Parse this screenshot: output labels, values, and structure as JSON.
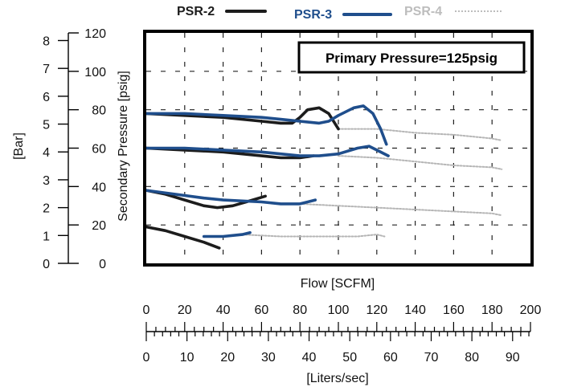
{
  "chart_data": {
    "type": "line",
    "title": "",
    "annotation": "Primary Pressure=125psig",
    "legend": {
      "placement": "top",
      "entries": [
        {
          "name": "PSR-2",
          "color": "#1c1c1c",
          "style": "solid"
        },
        {
          "name": "PSR-3",
          "color": "#1f4e8c",
          "style": "solid"
        },
        {
          "name": "PSR-4",
          "color": "#b5b5b5",
          "style": "dotted"
        }
      ]
    },
    "xlabel": "Flow [SCFM]",
    "xlim": [
      0,
      200
    ],
    "x_ticks": [
      "0",
      "20",
      "40",
      "60",
      "80",
      "100",
      "120",
      "140",
      "160",
      "180",
      "200"
    ],
    "x2label": "[Liters/sec]",
    "x2_ticks": [
      "0",
      "10",
      "20",
      "30",
      "40",
      "50",
      "60",
      "70",
      "80",
      "90"
    ],
    "ylabel": "Secondary Pressure [psig]",
    "ylim": [
      0,
      120
    ],
    "y_ticks": [
      "0",
      "20",
      "40",
      "60",
      "80",
      "100",
      "120"
    ],
    "y2label": "[Bar]",
    "y2_ticks": [
      "0",
      "1",
      "2",
      "3",
      "4",
      "5",
      "6",
      "7",
      "8"
    ],
    "grid": true,
    "series": [
      {
        "name": "PSR-2",
        "groups": [
          [
            [
              0,
              78
            ],
            [
              20,
              77
            ],
            [
              40,
              76
            ],
            [
              60,
              74
            ],
            [
              70,
              73
            ],
            [
              76,
              73
            ],
            [
              80,
              76
            ],
            [
              84,
              80
            ],
            [
              90,
              81
            ],
            [
              95,
              78
            ],
            [
              100,
              70
            ]
          ],
          [
            [
              0,
              60
            ],
            [
              20,
              59
            ],
            [
              40,
              58
            ],
            [
              60,
              56
            ],
            [
              70,
              55
            ],
            [
              80,
              55
            ],
            [
              87,
              56
            ]
          ],
          [
            [
              0,
              38
            ],
            [
              10,
              36
            ],
            [
              20,
              33
            ],
            [
              30,
              30
            ],
            [
              37,
              29
            ],
            [
              45,
              30
            ],
            [
              52,
              32
            ],
            [
              62,
              35
            ]
          ],
          [
            [
              0,
              19
            ],
            [
              10,
              17
            ],
            [
              20,
              14
            ],
            [
              30,
              11
            ],
            [
              38,
              8
            ]
          ]
        ]
      },
      {
        "name": "PSR-3",
        "groups": [
          [
            [
              0,
              78
            ],
            [
              20,
              78
            ],
            [
              40,
              77
            ],
            [
              60,
              76
            ],
            [
              70,
              75
            ],
            [
              80,
              74
            ],
            [
              90,
              73
            ],
            [
              95,
              74
            ],
            [
              100,
              77
            ],
            [
              108,
              81
            ],
            [
              113,
              82
            ],
            [
              118,
              78
            ],
            [
              122,
              70
            ],
            [
              125,
              62
            ]
          ],
          [
            [
              0,
              60
            ],
            [
              20,
              60
            ],
            [
              40,
              59
            ],
            [
              60,
              58
            ],
            [
              80,
              56
            ],
            [
              90,
              56
            ],
            [
              100,
              57
            ],
            [
              110,
              60
            ],
            [
              116,
              61
            ],
            [
              120,
              59
            ],
            [
              126,
              56
            ]
          ],
          [
            [
              0,
              38
            ],
            [
              15,
              36
            ],
            [
              30,
              34
            ],
            [
              40,
              33
            ],
            [
              60,
              32
            ],
            [
              70,
              31
            ],
            [
              80,
              31
            ],
            [
              88,
              33
            ]
          ],
          [
            [
              30,
              14
            ],
            [
              40,
              14
            ],
            [
              50,
              15
            ],
            [
              54,
              16
            ]
          ]
        ]
      },
      {
        "name": "PSR-4",
        "groups": [
          [
            [
              100,
              70
            ],
            [
              120,
              70
            ],
            [
              140,
              68
            ],
            [
              160,
              67
            ],
            [
              180,
              65
            ],
            [
              185,
              64
            ]
          ],
          [
            [
              100,
              56
            ],
            [
              120,
              55
            ],
            [
              140,
              53
            ],
            [
              160,
              51
            ],
            [
              180,
              50
            ],
            [
              185,
              49
            ]
          ],
          [
            [
              80,
              31
            ],
            [
              100,
              30
            ],
            [
              120,
              29
            ],
            [
              140,
              28
            ],
            [
              160,
              27
            ],
            [
              180,
              26
            ],
            [
              185,
              25
            ]
          ],
          [
            [
              50,
              15
            ],
            [
              70,
              14
            ],
            [
              90,
              14
            ],
            [
              110,
              14
            ],
            [
              120,
              15
            ],
            [
              124,
              14
            ]
          ]
        ]
      }
    ]
  }
}
